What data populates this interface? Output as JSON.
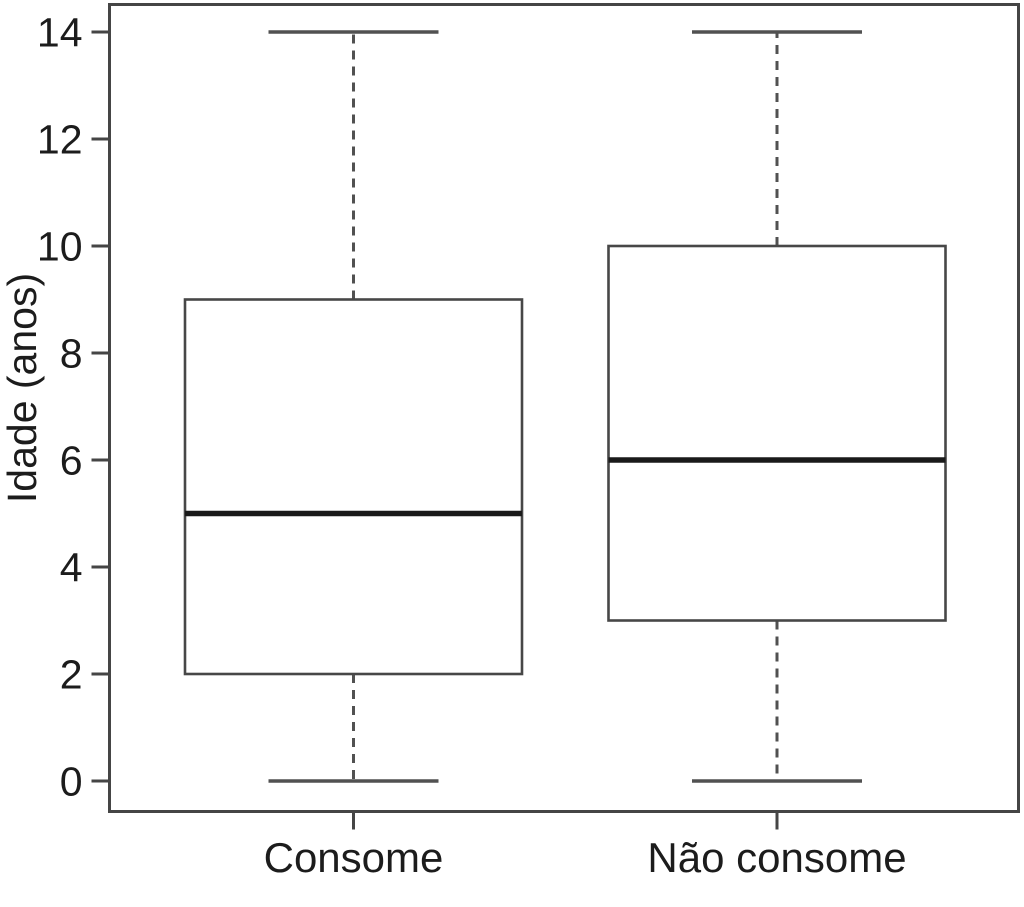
{
  "chart_data": {
    "type": "boxplot",
    "title": "",
    "xlabel": "",
    "ylabel": "Idade (anos)",
    "ylim": [
      0,
      14
    ],
    "yticks": [
      0,
      2,
      4,
      6,
      8,
      10,
      12,
      14
    ],
    "categories": [
      "Consome",
      "Não consome"
    ],
    "series": [
      {
        "name": "Consome",
        "whisker_min": 0,
        "q1": 2,
        "median": 5,
        "q3": 9,
        "whisker_max": 14
      },
      {
        "name": "Não consome",
        "whisker_min": 0,
        "q1": 3,
        "median": 6,
        "q3": 10,
        "whisker_max": 14
      }
    ],
    "legend": null,
    "grid": false,
    "colors": {
      "box_line": "#474747",
      "median_line": "#1a1a1a",
      "whisker_line": "#515151",
      "axis_line": "#454545",
      "text": "#1c1c1c",
      "background": "#ffffff"
    }
  }
}
